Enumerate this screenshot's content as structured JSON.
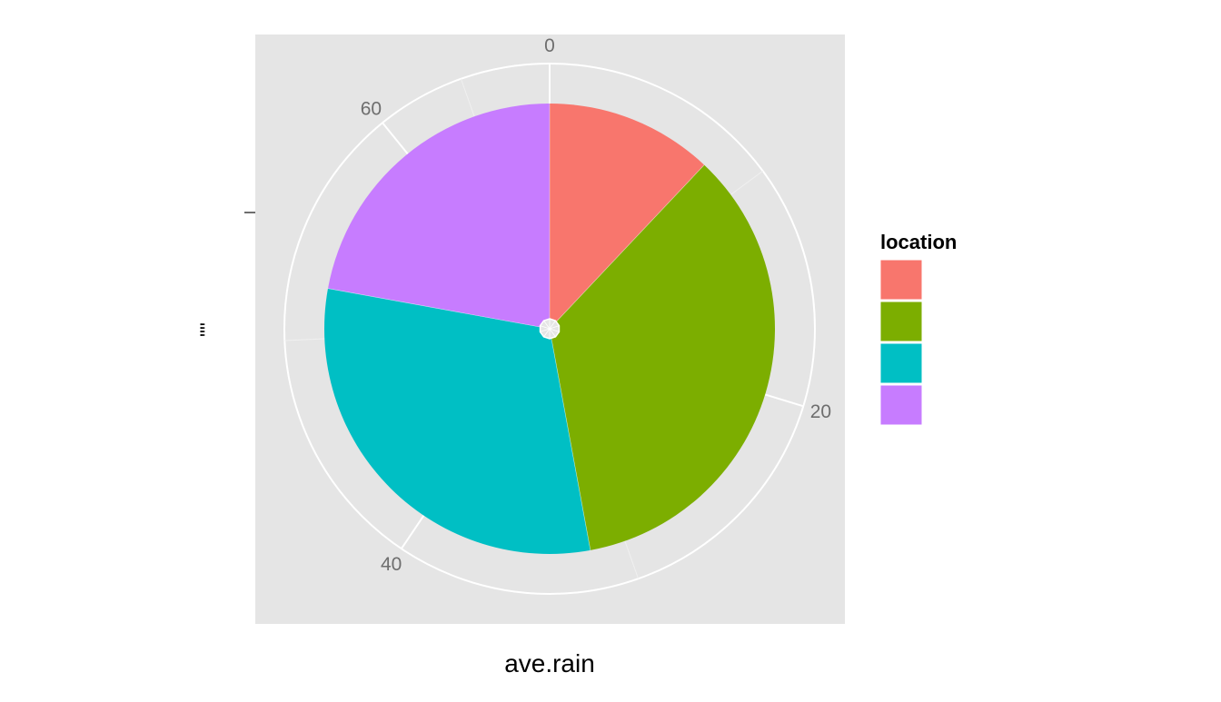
{
  "chart_data": {
    "type": "pie",
    "coord": "polar",
    "xlabel": "ave.rain",
    "ylabel": "\"\"",
    "y_ticks": [
      "0",
      "20",
      "40",
      "60"
    ],
    "y_tick_values": [
      0,
      20,
      40,
      60
    ],
    "y_range": [
      0,
      67.3
    ],
    "grid": true,
    "legend": {
      "title": "location",
      "position": "right"
    },
    "series": [
      {
        "value": 8.1,
        "color": "#F8766D"
      },
      {
        "value": 23.6,
        "color": "#7CAE00"
      },
      {
        "value": 20.7,
        "color": "#00BFC4"
      },
      {
        "value": 14.9,
        "color": "#C77CFF"
      }
    ]
  }
}
